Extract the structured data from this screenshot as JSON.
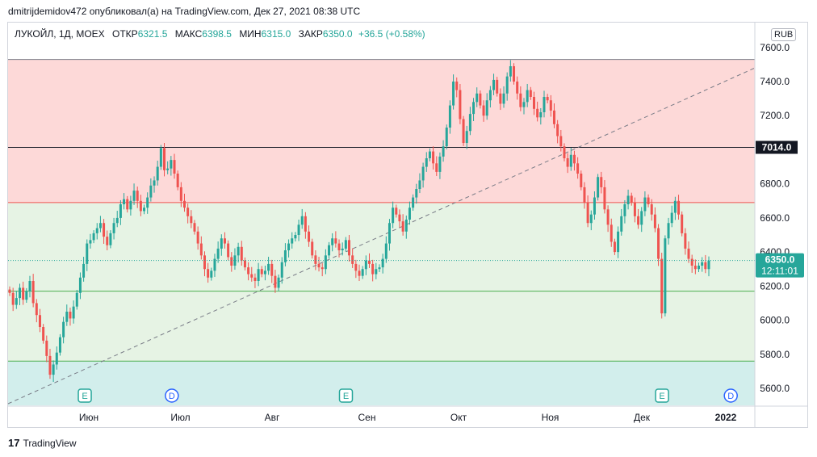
{
  "header": {
    "publish_line": "dmitrijdemidov472 опубликовал(а) на TradingView.com, Дек 27, 2021 08:38 UTC"
  },
  "legend": {
    "symbol": "ЛУКОЙЛ, 1Д, MOEX",
    "open_label": "ОТКР",
    "open_value": "6321.5",
    "high_label": "МАКС",
    "high_value": "6398.5",
    "low_label": "МИН",
    "low_value": "6315.0",
    "close_label": "ЗАКР",
    "close_value": "6350.0",
    "change": "+36.5 (+0.58%)"
  },
  "currency": "RUB",
  "footer": {
    "brand": "TradingView",
    "logo_glyph": "17"
  },
  "colors": {
    "up": "#26a69a",
    "down": "#ef5350",
    "zone_red": "#fdd9d8",
    "zone_green": "#e6f3e4",
    "zone_cyan": "#d2eeec"
  },
  "chart_data": {
    "type": "candlestick",
    "ylim": [
      5500,
      7650
    ],
    "y_ticks": [
      "5600.0",
      "5800.0",
      "6000.0",
      "6200.0",
      "6400.0",
      "6600.0",
      "6800.0",
      "7000.0",
      "7200.0",
      "7400.0",
      "7600.0"
    ],
    "x_ticks": [
      "Июн",
      "Июл",
      "Авг",
      "Сен",
      "Окт",
      "Ноя",
      "Дек",
      "2022"
    ],
    "x_tick_bold": "2022",
    "horizontal_levels": [
      {
        "value": 7530,
        "color": "#787b86"
      },
      {
        "value": 7014,
        "color": "#131722",
        "label": "7014.0"
      },
      {
        "value": 6690,
        "color": "#ef5350"
      },
      {
        "value": 6170,
        "color": "#4caf50"
      },
      {
        "value": 5760,
        "color": "#4caf50"
      }
    ],
    "zones": [
      {
        "from": 6690,
        "to": 7530,
        "color": "#fdd9d8"
      },
      {
        "from": 5760,
        "to": 6690,
        "color": "#e6f3e4"
      },
      {
        "from": 5500,
        "to": 5760,
        "color": "#d2eeec"
      }
    ],
    "trendline": {
      "from": [
        0,
        5510
      ],
      "to": [
        1,
        7480
      ]
    },
    "current_price": {
      "value": 6350,
      "label": "6350.0",
      "countdown": "12:11:01"
    },
    "events": [
      {
        "label": "E",
        "color": "#26a69a",
        "month_pos": 0.15
      },
      {
        "label": "D",
        "color": "#2962ff",
        "month_pos": 1.1
      },
      {
        "label": "E",
        "color": "#26a69a",
        "month_pos": 3.0
      },
      {
        "label": "E",
        "color": "#26a69a",
        "month_pos": 6.45
      },
      {
        "label": "D",
        "color": "#2962ff",
        "month_pos": 7.2
      }
    ],
    "closes": [
      6160,
      6090,
      6130,
      6190,
      6120,
      6170,
      6230,
      6100,
      6030,
      5960,
      5880,
      5790,
      5680,
      5740,
      5810,
      5900,
      5990,
      6050,
      6010,
      6080,
      6160,
      6250,
      6330,
      6450,
      6470,
      6510,
      6540,
      6570,
      6490,
      6440,
      6510,
      6570,
      6600,
      6680,
      6710,
      6650,
      6700,
      6760,
      6700,
      6640,
      6660,
      6720,
      6790,
      6820,
      6900,
      7010,
      6880,
      6890,
      6940,
      6860,
      6780,
      6700,
      6660,
      6610,
      6570,
      6520,
      6450,
      6380,
      6300,
      6250,
      6290,
      6360,
      6420,
      6480,
      6450,
      6370,
      6320,
      6380,
      6430,
      6350,
      6310,
      6270,
      6250,
      6230,
      6300,
      6270,
      6290,
      6330,
      6260,
      6190,
      6250,
      6340,
      6410,
      6450,
      6480,
      6500,
      6560,
      6610,
      6520,
      6460,
      6380,
      6330,
      6310,
      6300,
      6380,
      6440,
      6480,
      6450,
      6410,
      6420,
      6470,
      6380,
      6330,
      6290,
      6260,
      6300,
      6350,
      6330,
      6270,
      6300,
      6310,
      6360,
      6450,
      6570,
      6660,
      6620,
      6580,
      6520,
      6590,
      6660,
      6720,
      6770,
      6820,
      6900,
      6950,
      6990,
      6920,
      6870,
      6960,
      7020,
      7130,
      7260,
      7400,
      7350,
      7180,
      7040,
      7110,
      7210,
      7280,
      7330,
      7260,
      7200,
      7290,
      7350,
      7410,
      7330,
      7270,
      7330,
      7430,
      7490,
      7400,
      7330,
      7250,
      7280,
      7350,
      7310,
      7240,
      7190,
      7220,
      7310,
      7290,
      7230,
      7150,
      7080,
      7020,
      6950,
      6900,
      6970,
      6920,
      6860,
      6780,
      6690,
      6570,
      6620,
      6720,
      6840,
      6780,
      6650,
      6560,
      6460,
      6400,
      6520,
      6610,
      6680,
      6730,
      6690,
      6610,
      6560,
      6640,
      6720,
      6680,
      6620,
      6540,
      6360,
      6040,
      6480,
      6570,
      6630,
      6700,
      6620,
      6510,
      6420,
      6360,
      6320,
      6300,
      6320,
      6340,
      6300,
      6350
    ]
  }
}
